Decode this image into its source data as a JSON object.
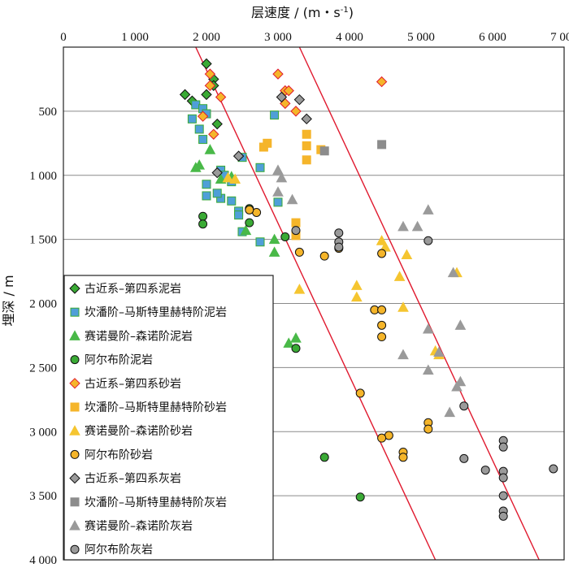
{
  "chart_data": {
    "type": "scatter",
    "title": "",
    "xlabel": "层速度 / (m・s",
    "xlabel_sup": "-1",
    "xlabel_end": ")",
    "ylabel": "埋深 / m",
    "xlim": [
      0,
      7000
    ],
    "ylim": [
      0,
      4000
    ],
    "y_inverted": true,
    "x_axis_position": "top",
    "x_ticks": [
      0,
      1000,
      2000,
      3000,
      4000,
      5000,
      6000,
      7000
    ],
    "x_tick_labels": [
      "0",
      "1 000",
      "2 000",
      "3 000",
      "4 000",
      "5 000",
      "6 000",
      "7 000"
    ],
    "y_ticks": [
      500,
      1000,
      1500,
      2000,
      2500,
      3000,
      3500,
      4000
    ],
    "y_tick_labels": [
      "500",
      "1 000",
      "1 500",
      "2 000",
      "2 500",
      "3 000",
      "3 500",
      "4 000"
    ],
    "grid": "horizontal",
    "legend_position": "bottom-left",
    "trend_lines": [
      {
        "color": "#e0192e",
        "points": [
          [
            1850,
            0
          ],
          [
            5200,
            4000
          ]
        ]
      },
      {
        "color": "#e0192e",
        "points": [
          [
            3300,
            0
          ],
          [
            6650,
            4000
          ]
        ]
      }
    ],
    "series": [
      {
        "name": "古近系–第四系泥岩",
        "marker": "diamond",
        "fill": "#3aaa35",
        "stroke": "#111111",
        "points": [
          [
            2000,
            130
          ],
          [
            2100,
            250
          ],
          [
            2100,
            300
          ],
          [
            2000,
            370
          ],
          [
            2150,
            600
          ],
          [
            1700,
            370
          ],
          [
            1800,
            420
          ]
        ]
      },
      {
        "name": "坎潘阶–马斯特里赫特阶泥岩",
        "marker": "square",
        "fill": "#4f9fd8",
        "stroke": "#3aaa35",
        "points": [
          [
            1850,
            450
          ],
          [
            1800,
            560
          ],
          [
            1950,
            480
          ],
          [
            2000,
            520
          ],
          [
            1900,
            640
          ],
          [
            1950,
            720
          ],
          [
            2200,
            960
          ],
          [
            2500,
            860
          ],
          [
            2750,
            940
          ],
          [
            2200,
            1180
          ],
          [
            2350,
            1200
          ],
          [
            2450,
            1280
          ],
          [
            2450,
            1310
          ],
          [
            2000,
            1070
          ],
          [
            2000,
            1160
          ],
          [
            2150,
            1140
          ],
          [
            2350,
            1050
          ],
          [
            2500,
            1440
          ],
          [
            2750,
            1520
          ],
          [
            3000,
            1210
          ],
          [
            2950,
            530
          ],
          [
            2250,
            1000
          ]
        ]
      },
      {
        "name": "赛诺曼阶–森诺阶泥岩",
        "marker": "triangle",
        "fill": "#49b948",
        "stroke": "#49b948",
        "points": [
          [
            1900,
            920
          ],
          [
            1850,
            940
          ],
          [
            2050,
            800
          ],
          [
            2350,
            1010
          ],
          [
            2550,
            1430
          ],
          [
            2950,
            1500
          ],
          [
            2950,
            1600
          ],
          [
            3250,
            2270
          ],
          [
            3150,
            2310
          ],
          [
            2200,
            1030
          ]
        ]
      },
      {
        "name": "阿尔布阶泥岩",
        "marker": "circle",
        "fill": "#3aaa35",
        "stroke": "#111111",
        "points": [
          [
            1950,
            1320
          ],
          [
            1950,
            1380
          ],
          [
            2600,
            1370
          ],
          [
            2600,
            1260
          ],
          [
            3100,
            1480
          ],
          [
            3250,
            2350
          ],
          [
            3650,
            3200
          ],
          [
            4150,
            3510
          ]
        ]
      },
      {
        "name": "古近系–第四系砂岩",
        "marker": "diamond",
        "fill": "#f5b52a",
        "stroke": "#e0192e",
        "points": [
          [
            2050,
            210
          ],
          [
            2050,
            300
          ],
          [
            1950,
            540
          ],
          [
            2200,
            390
          ],
          [
            2100,
            680
          ],
          [
            3000,
            210
          ],
          [
            3100,
            340
          ],
          [
            3150,
            340
          ],
          [
            3100,
            440
          ],
          [
            3250,
            500
          ],
          [
            4450,
            270
          ]
        ]
      },
      {
        "name": "坎潘阶–马斯特里赫特阶砂岩",
        "marker": "square",
        "fill": "#f5b52a",
        "stroke": "#f5b52a",
        "points": [
          [
            2800,
            780
          ],
          [
            2850,
            750
          ],
          [
            3400,
            680
          ],
          [
            3400,
            770
          ],
          [
            3400,
            880
          ],
          [
            3600,
            800
          ],
          [
            3250,
            1370
          ],
          [
            3250,
            1470
          ]
        ]
      },
      {
        "name": "赛诺曼阶–森诺阶砂岩",
        "marker": "triangle",
        "fill": "#f5c530",
        "stroke": "#f5c530",
        "points": [
          [
            2300,
            1020
          ],
          [
            2400,
            1030
          ],
          [
            3300,
            1890
          ],
          [
            4100,
            1860
          ],
          [
            4100,
            1950
          ],
          [
            4450,
            1510
          ],
          [
            4500,
            1560
          ],
          [
            4800,
            1620
          ],
          [
            4700,
            1790
          ],
          [
            4750,
            2030
          ],
          [
            5200,
            2370
          ],
          [
            5250,
            2400
          ],
          [
            5500,
            1760
          ]
        ]
      },
      {
        "name": "阿尔布阶砂岩",
        "marker": "circle",
        "fill": "#f5b52a",
        "stroke": "#111111",
        "points": [
          [
            2700,
            1290
          ],
          [
            2600,
            1270
          ],
          [
            3300,
            1600
          ],
          [
            3650,
            1630
          ],
          [
            3850,
            1570
          ],
          [
            4450,
            1610
          ],
          [
            4350,
            2050
          ],
          [
            4450,
            2050
          ],
          [
            4450,
            2170
          ],
          [
            4450,
            2260
          ],
          [
            4150,
            2700
          ],
          [
            4550,
            3030
          ],
          [
            4450,
            3050
          ],
          [
            4750,
            3160
          ],
          [
            4750,
            3200
          ],
          [
            5100,
            2930
          ],
          [
            5100,
            2980
          ]
        ]
      },
      {
        "name": "古近系–第四系灰岩",
        "marker": "diamond",
        "fill": "#9a9a9a",
        "stroke": "#111111",
        "points": [
          [
            2150,
            980
          ],
          [
            2450,
            850
          ],
          [
            3400,
            560
          ],
          [
            3300,
            410
          ],
          [
            3050,
            390
          ]
        ]
      },
      {
        "name": "坎潘阶–马斯特里赫特阶灰岩",
        "marker": "square",
        "fill": "#8c8c8c",
        "stroke": "#8c8c8c",
        "points": [
          [
            4450,
            760
          ],
          [
            3650,
            810
          ]
        ]
      },
      {
        "name": "赛诺曼阶–森诺阶灰岩",
        "marker": "triangle",
        "fill": "#9a9a9a",
        "stroke": "#9a9a9a",
        "points": [
          [
            3000,
            1130
          ],
          [
            3050,
            1020
          ],
          [
            3000,
            960
          ],
          [
            3200,
            1190
          ],
          [
            4750,
            1400
          ],
          [
            4950,
            1400
          ],
          [
            5100,
            1270
          ],
          [
            5450,
            1760
          ],
          [
            4750,
            2400
          ],
          [
            5100,
            2200
          ],
          [
            5250,
            2380
          ],
          [
            5550,
            2170
          ],
          [
            5100,
            2520
          ],
          [
            5500,
            2650
          ],
          [
            5550,
            2610
          ],
          [
            5400,
            2850
          ]
        ]
      },
      {
        "name": "阿尔布阶灰岩",
        "marker": "circle",
        "fill": "#9a9a9a",
        "stroke": "#111111",
        "points": [
          [
            3250,
            1430
          ],
          [
            3850,
            1450
          ],
          [
            3850,
            1520
          ],
          [
            3850,
            1560
          ],
          [
            5100,
            1510
          ],
          [
            5600,
            2800
          ],
          [
            5600,
            3210
          ],
          [
            5900,
            3300
          ],
          [
            6150,
            3070
          ],
          [
            6150,
            3120
          ],
          [
            6150,
            3310
          ],
          [
            6150,
            3360
          ],
          [
            6150,
            3500
          ],
          [
            6150,
            3620
          ],
          [
            6150,
            3660
          ],
          [
            6850,
            3290
          ]
        ]
      }
    ]
  }
}
